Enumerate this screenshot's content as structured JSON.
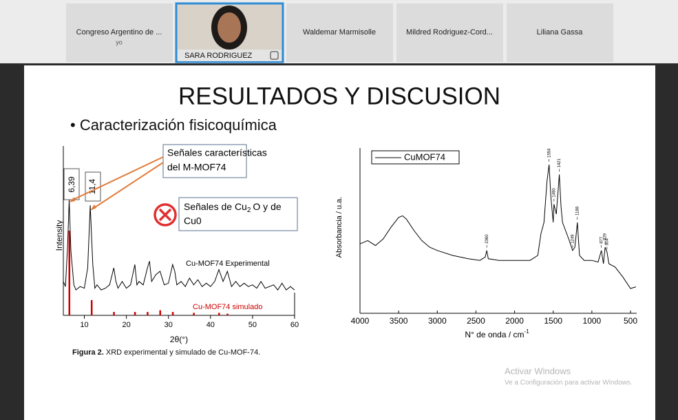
{
  "participants": [
    {
      "name": "Congreso Argentino de ...",
      "note": "yo"
    },
    {
      "name": "SARA RODRIGUEZ"
    },
    {
      "name": "Waldemar Marmisolle"
    },
    {
      "name": "Mildred Rodriguez-Cord..."
    },
    {
      "name": "Liliana Gassa"
    }
  ],
  "slide": {
    "title": "RESULTADOS Y DISCUSION",
    "bullet": "• Caracterización fisicoquímica",
    "callout_peaks": [
      "6,39",
      "11,4"
    ],
    "callout_signals": [
      "Señales características",
      "del M-MOF74"
    ],
    "callout_cu": {
      "a": "Señales de Cu",
      "sub": "2",
      "b": "O y de",
      "c": "Cu0"
    },
    "caption": {
      "bold": "Figura 2.",
      "text": " XRD experimental y simulado de Cu-MOF-74."
    }
  },
  "chart_data": [
    {
      "type": "line",
      "xlabel": "2θ(°)",
      "ylabel": "Intensity",
      "xlim": [
        5,
        60
      ],
      "xticks": [
        10,
        20,
        30,
        40,
        50,
        60
      ],
      "ylim": [
        0,
        100
      ],
      "series": [
        {
          "name": "Cu-MOF74 Experimental",
          "color": "#000000",
          "x": [
            5,
            5.5,
            6,
            6.39,
            6.8,
            7.5,
            8,
            9,
            10,
            10.8,
            11.4,
            12,
            12.5,
            13,
            14,
            15,
            16,
            17,
            17.5,
            18,
            19,
            20,
            21,
            22,
            22.5,
            23,
            24,
            25,
            25.5,
            26,
            27,
            28,
            29,
            30,
            31,
            31.5,
            32,
            33,
            34,
            35,
            36,
            37,
            38,
            39,
            40,
            41,
            42,
            43,
            44,
            45,
            46,
            47,
            48,
            49,
            50,
            51,
            52,
            53,
            54,
            55,
            56,
            57,
            58,
            59,
            60
          ],
          "values": [
            20,
            17,
            40,
            68,
            38,
            18,
            15,
            17,
            16,
            28,
            65,
            30,
            16,
            18,
            15,
            16,
            18,
            28,
            20,
            16,
            20,
            16,
            18,
            30,
            18,
            20,
            18,
            28,
            32,
            20,
            24,
            26,
            18,
            19,
            30,
            26,
            18,
            20,
            17,
            22,
            18,
            21,
            17,
            19,
            17,
            20,
            27,
            20,
            26,
            17,
            20,
            17,
            19,
            17,
            18,
            16,
            20,
            16,
            17,
            18,
            15,
            19,
            15,
            17,
            15
          ]
        },
        {
          "name": "Cu-MOF74 simulado",
          "color": "#cc0000",
          "type": "bar",
          "x": [
            6.4,
            11.7,
            17,
            22,
            25,
            28,
            31,
            36,
            42,
            44
          ],
          "values": [
            50,
            9,
            2,
            2,
            2,
            3,
            2,
            1.5,
            1.5,
            1
          ]
        }
      ]
    },
    {
      "type": "line",
      "xlabel": "N° de onda / cm",
      "xlabel_sup": "-1",
      "ylabel": "Absorbancia / u.a.",
      "xlim": [
        4000,
        420
      ],
      "xticks": [
        4000,
        3500,
        3000,
        2500,
        2000,
        1500,
        1000,
        500
      ],
      "ylim": [
        0,
        100
      ],
      "series": [
        {
          "name": "CuMOF74",
          "color": "#000000",
          "x": [
            4000,
            3900,
            3800,
            3700,
            3600,
            3500,
            3450,
            3400,
            3300,
            3200,
            3100,
            3000,
            2800,
            2600,
            2450,
            2380,
            2360,
            2340,
            2200,
            2000,
            1800,
            1700,
            1660,
            1620,
            1580,
            1554,
            1530,
            1500,
            1490,
            1460,
            1421,
            1400,
            1380,
            1300,
            1249,
            1220,
            1188,
            1160,
            1100,
            1000,
            920,
            877,
            850,
            829,
            804,
            780,
            700,
            600,
            500,
            430
          ],
          "values": [
            42,
            44,
            41,
            45,
            52,
            58,
            59,
            57,
            50,
            44,
            40,
            38,
            35,
            33,
            32,
            34,
            38,
            33,
            32,
            32,
            32,
            35,
            48,
            55,
            80,
            90,
            70,
            55,
            66,
            60,
            84,
            65,
            55,
            45,
            38,
            40,
            55,
            35,
            32,
            32,
            31,
            38,
            30,
            40,
            37,
            30,
            28,
            22,
            15,
            16
          ]
        }
      ],
      "peak_labels": [
        2360,
        1554,
        1490,
        1421,
        1249,
        1188,
        877,
        829,
        804
      ]
    }
  ],
  "watermark": {
    "title": "Activar Windows",
    "text": "Ve a Configuración para activar Windows."
  }
}
